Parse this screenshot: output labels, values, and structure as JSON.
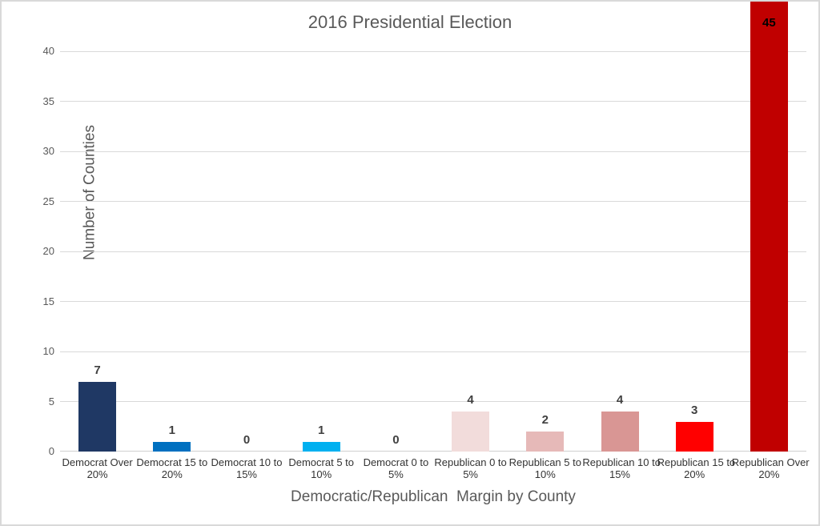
{
  "chart_data": {
    "type": "bar",
    "title": "2016 Presidential Election",
    "xlabel": "Democratic/Republican  Margin by County",
    "ylabel": "Number of Counties",
    "categories": [
      "Democrat Over 20%",
      "Democrat 15 to 20%",
      "Democrat 10 to 15%",
      "Democrat 5 to 10%",
      "Democrat 0 to 5%",
      "Republican 0 to 5%",
      "Republican 5 to 10%",
      "Republican 10 to 15%",
      "Republican 15 to 20%",
      "Republican Over 20%"
    ],
    "category_lines": [
      [
        "Democrat Over",
        "20%"
      ],
      [
        "Democrat 15 to",
        "20%"
      ],
      [
        "Democrat 10 to",
        "15%"
      ],
      [
        "Democrat 5 to",
        "10%"
      ],
      [
        "Democrat 0 to",
        "5%"
      ],
      [
        "Republican 0 to",
        "5%"
      ],
      [
        "Republican 5 to",
        "10%"
      ],
      [
        "Republican 10 to",
        "15%"
      ],
      [
        "Republican 15 to",
        "20%"
      ],
      [
        "Republican Over",
        "20%"
      ]
    ],
    "values": [
      7,
      1,
      0,
      1,
      0,
      4,
      2,
      4,
      3,
      45
    ],
    "bar_colors": [
      "#1F3864",
      "#0070C0",
      null,
      "#00B0F0",
      null,
      "#F2DCDB",
      "#E6B9B8",
      "#D99694",
      "#FF0000",
      "#C00000"
    ],
    "ylim": [
      0,
      45
    ],
    "yticks": [
      0,
      5,
      10,
      15,
      20,
      25,
      30,
      35,
      40
    ],
    "grid": true,
    "legend_position": "none",
    "colors": {
      "gridline": "#D9D9D9",
      "axis_line": "#D0D0D0",
      "title_text": "#595959",
      "tick_text": "#595959",
      "category_text": "#333333",
      "value_label": "#404040",
      "value_label_inside": "#000000",
      "border": "#D9D9D9",
      "background": "#FFFFFF"
    }
  }
}
